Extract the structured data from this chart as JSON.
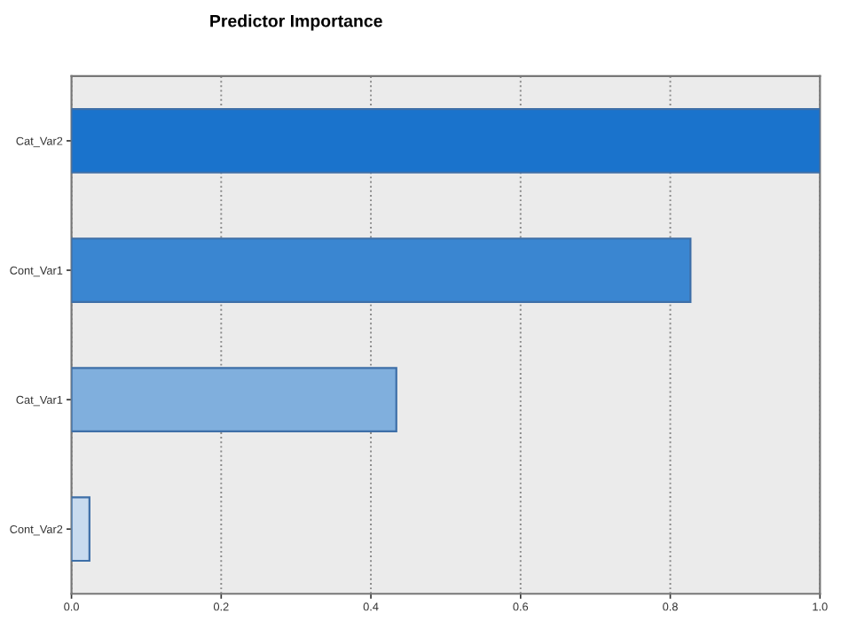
{
  "chart_data": {
    "type": "bar",
    "orientation": "horizontal",
    "title": "Predictor Importance",
    "categories": [
      "Cat_Var2",
      "Cont_Var1",
      "Cat_Var1",
      "Cont_Var2"
    ],
    "values": [
      1.0,
      0.827,
      0.434,
      0.024
    ],
    "colors": [
      "#1a73cc",
      "#3a86d1",
      "#80afdd",
      "#c8dbef"
    ],
    "xlim": [
      0,
      1
    ],
    "xticks": [
      {
        "value": 0,
        "label": "0.0"
      },
      0.2,
      0.4,
      0.6,
      0.8,
      {
        "value": 1,
        "label": "1.0"
      }
    ],
    "grid": "x",
    "line_style": "dotted"
  }
}
